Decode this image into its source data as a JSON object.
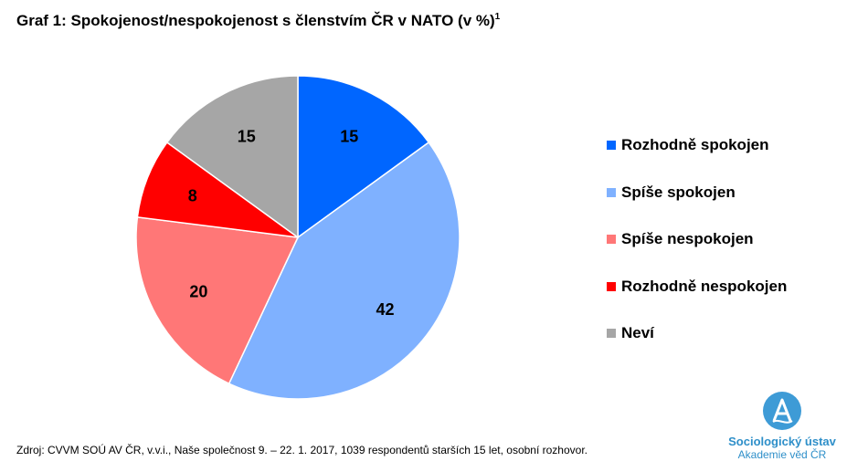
{
  "title": "Graf 1: Spokojenost/nespokojenost s členstvím ČR v NATO (v %)",
  "title_footnote": "1",
  "chart_data": {
    "type": "pie",
    "title": "Graf 1: Spokojenost/nespokojenost s členstvím ČR v NATO (v %)",
    "unit": "%",
    "start_angle": "12 o'clock",
    "direction": "clockwise",
    "legend_position": "right",
    "series": [
      {
        "name": "Rozhodně spokojen",
        "value": 15,
        "color": "#0066FF"
      },
      {
        "name": "Spíše spokojen",
        "value": 42,
        "color": "#7FB1FF"
      },
      {
        "name": "Spíše nespokojen",
        "value": 20,
        "color": "#FF7777"
      },
      {
        "name": "Rozhodně nespokojen",
        "value": 8,
        "color": "#FF0000"
      },
      {
        "name": "Neví",
        "value": 15,
        "color": "#A6A6A6"
      }
    ]
  },
  "source": "Zdroj: CVVM SOÚ AV ČR, v.v.i., Naše společnost 9. – 22. 1. 2017, 1039 respondentů starších 15 let, osobní rozhovor.",
  "logo": {
    "line1": "Sociologický ústav",
    "line2": "Akademie věd ČR",
    "color": "#2E8FC9"
  }
}
